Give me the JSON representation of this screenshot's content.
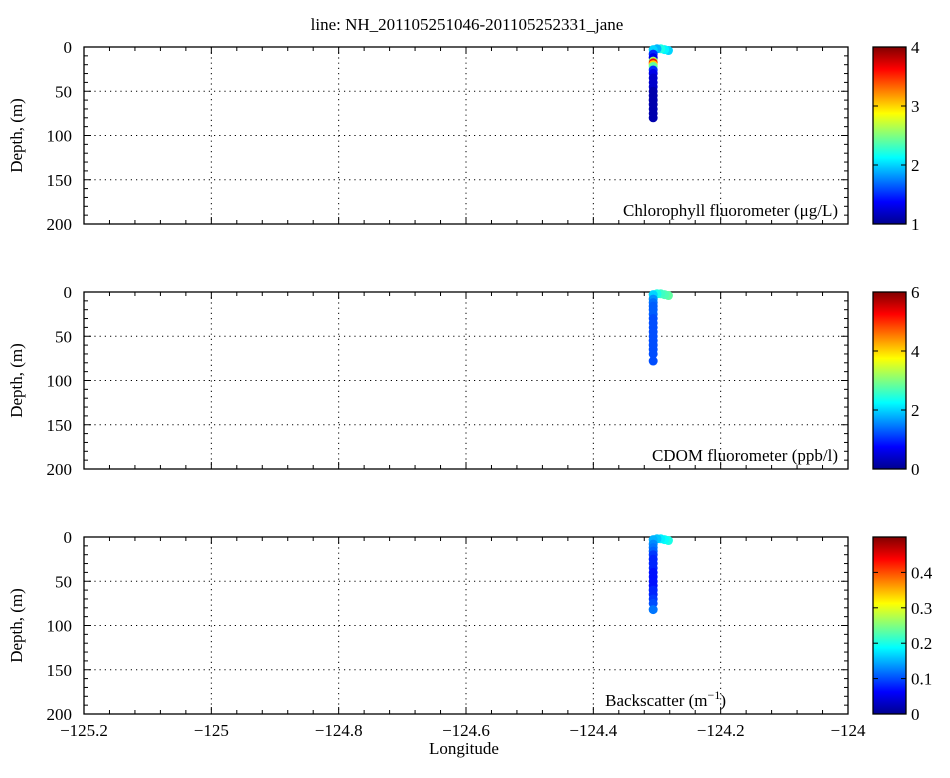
{
  "title": "line: NH_201105251046-201105252331_jane",
  "colormap": [
    "#00008f",
    "#0000ff",
    "#0080ff",
    "#00ffff",
    "#80ff80",
    "#ffff00",
    "#ff8000",
    "#ff0000",
    "#800000"
  ],
  "chart_data": [
    {
      "type": "scatter",
      "panel": "chlorophyll",
      "annotation": "Chlorophyll fluorometer (μg/L)",
      "xlabel": "",
      "ylabel": "Depth, (m)",
      "xlim": [
        -125.2,
        -124.0
      ],
      "ylim": [
        0,
        200
      ],
      "y_reversed": true,
      "xticks": [
        -125.2,
        -125,
        -124.8,
        -124.6,
        -124.4,
        -124.2,
        -124
      ],
      "xtick_labels": [
        "−125.2",
        "−125",
        "−124.8",
        "−124.6",
        "−124.4",
        "−124.2",
        "−124"
      ],
      "yticks": [
        0,
        50,
        100,
        150,
        200
      ],
      "ytick_labels": [
        "0",
        "50",
        "100",
        "150",
        "200"
      ],
      "grid": true,
      "colorbar": {
        "min": 1,
        "max": 4,
        "ticks": [
          1,
          2,
          3,
          4
        ],
        "tick_labels": [
          "1",
          "2",
          "3",
          "4"
        ]
      },
      "x": [
        -124.282,
        -124.288,
        -124.294,
        -124.3,
        -124.306,
        -124.306,
        -124.306,
        -124.306,
        -124.306,
        -124.306,
        -124.306,
        -124.306,
        -124.306,
        -124.306,
        -124.306,
        -124.306,
        -124.306,
        -124.306,
        -124.306,
        -124.306,
        -124.306,
        -124.306,
        -124.306
      ],
      "y": [
        4,
        3,
        2,
        2,
        3,
        8,
        12,
        16,
        18,
        20,
        22,
        26,
        30,
        35,
        40,
        45,
        50,
        55,
        60,
        65,
        70,
        75,
        80
      ],
      "values": [
        2.0,
        2.1,
        2.2,
        1.9,
        2.0,
        1.5,
        1.3,
        2.6,
        3.6,
        3.0,
        2.4,
        1.5,
        1.3,
        1.2,
        1.2,
        1.2,
        1.1,
        1.1,
        1.1,
        1.1,
        1.1,
        1.1,
        1.1
      ]
    },
    {
      "type": "scatter",
      "panel": "cdom",
      "annotation": "CDOM fluorometer (ppb/l)",
      "xlabel": "",
      "ylabel": "Depth, (m)",
      "xlim": [
        -125.2,
        -124.0
      ],
      "ylim": [
        0,
        200
      ],
      "y_reversed": true,
      "xticks": [
        -125.2,
        -125,
        -124.8,
        -124.6,
        -124.4,
        -124.2,
        -124
      ],
      "xtick_labels": [
        "−125.2",
        "−125",
        "−124.8",
        "−124.6",
        "−124.4",
        "−124.2",
        "−124"
      ],
      "yticks": [
        0,
        50,
        100,
        150,
        200
      ],
      "ytick_labels": [
        "0",
        "50",
        "100",
        "150",
        "200"
      ],
      "grid": true,
      "colorbar": {
        "min": 0,
        "max": 6,
        "ticks": [
          0,
          2,
          4,
          6
        ],
        "tick_labels": [
          "0",
          "2",
          "4",
          "6"
        ]
      },
      "x": [
        -124.282,
        -124.288,
        -124.294,
        -124.3,
        -124.306,
        -124.306,
        -124.306,
        -124.306,
        -124.306,
        -124.306,
        -124.306,
        -124.306,
        -124.306,
        -124.306,
        -124.306,
        -124.306,
        -124.306,
        -124.306,
        -124.306,
        -124.306
      ],
      "y": [
        4,
        3,
        2,
        2,
        3,
        8,
        12,
        16,
        20,
        25,
        30,
        35,
        40,
        45,
        50,
        55,
        60,
        65,
        70,
        78
      ],
      "values": [
        2.8,
        2.7,
        2.6,
        2.4,
        2.0,
        1.6,
        1.4,
        1.3,
        1.3,
        1.3,
        1.2,
        1.2,
        1.2,
        1.2,
        1.2,
        1.2,
        1.2,
        1.2,
        1.2,
        1.2
      ]
    },
    {
      "type": "scatter",
      "panel": "backscatter",
      "annotation_base": "Backscatter (m",
      "annotation_sup": "−1",
      "annotation_end": ")",
      "xlabel": "Longitude",
      "ylabel": "Depth, (m)",
      "xlim": [
        -125.2,
        -124.0
      ],
      "ylim": [
        0,
        200
      ],
      "y_reversed": true,
      "xticks": [
        -125.2,
        -125,
        -124.8,
        -124.6,
        -124.4,
        -124.2,
        -124
      ],
      "xtick_labels": [
        "−125.2",
        "−125",
        "−124.8",
        "−124.6",
        "−124.4",
        "−124.2",
        "−124"
      ],
      "yticks": [
        0,
        50,
        100,
        150,
        200
      ],
      "ytick_labels": [
        "0",
        "50",
        "100",
        "150",
        "200"
      ],
      "grid": true,
      "colorbar": {
        "min": 0,
        "max": 0.5,
        "ticks": [
          0,
          0.1,
          0.2,
          0.3,
          0.4
        ],
        "tick_labels": [
          "0",
          "0.1",
          "0.2",
          "0.3",
          "0.4"
        ]
      },
      "x": [
        -124.282,
        -124.288,
        -124.294,
        -124.3,
        -124.306,
        -124.306,
        -124.306,
        -124.306,
        -124.306,
        -124.306,
        -124.306,
        -124.306,
        -124.306,
        -124.306,
        -124.306,
        -124.306,
        -124.306,
        -124.306,
        -124.306,
        -124.306,
        -124.306
      ],
      "y": [
        4,
        3,
        2,
        2,
        3,
        8,
        12,
        16,
        20,
        25,
        30,
        35,
        40,
        45,
        50,
        55,
        60,
        65,
        70,
        75,
        82
      ],
      "values": [
        0.2,
        0.19,
        0.18,
        0.16,
        0.15,
        0.13,
        0.12,
        0.11,
        0.09,
        0.08,
        0.08,
        0.08,
        0.07,
        0.07,
        0.07,
        0.07,
        0.08,
        0.08,
        0.09,
        0.1,
        0.12
      ]
    }
  ]
}
